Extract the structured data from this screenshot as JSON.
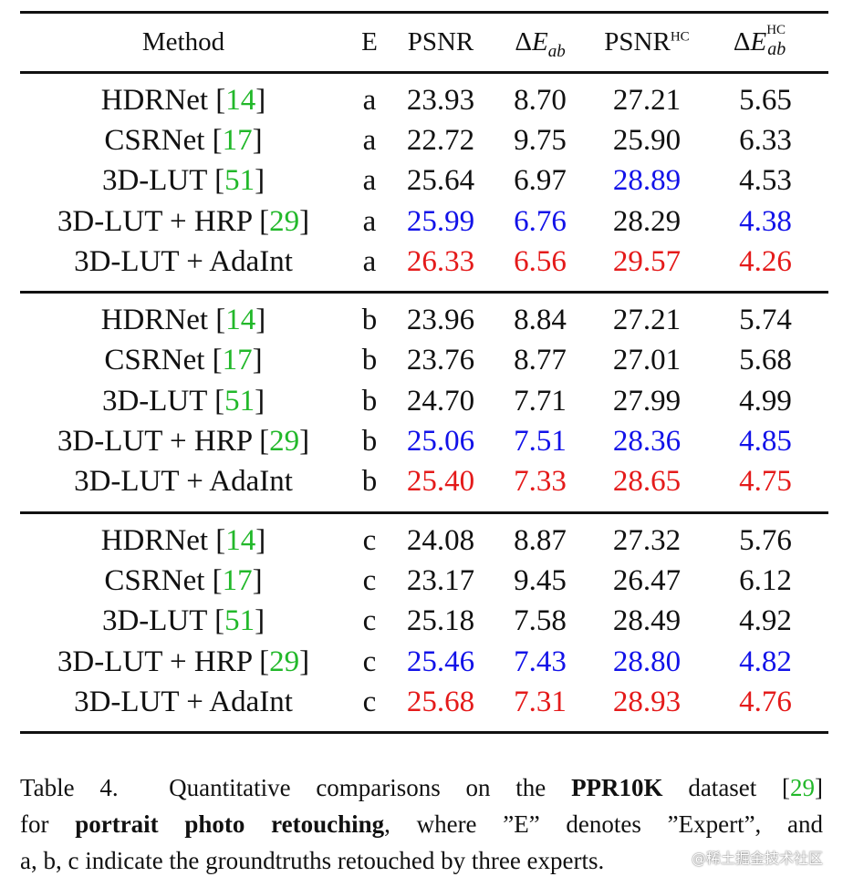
{
  "table": {
    "headers": {
      "method": "Method",
      "expert": "E",
      "psnr": "PSNR",
      "delta_e_symbol": "Δ",
      "delta_e_var": "E",
      "delta_e_sub": "ab",
      "psnr_hc_base": "PSNR",
      "psnr_hc_sup": "HC",
      "delta_e_hc_sup": "HC",
      "delta_e_hc_sub": "ab"
    },
    "groups": [
      {
        "rows": [
          {
            "method": "HDRNet",
            "ref": "14",
            "e": "a",
            "psnr": "23.93",
            "de": "8.70",
            "psnr_hc": "27.21",
            "de_hc": "5.65",
            "psnr_color": "",
            "de_color": "",
            "psnr_hc_color": "",
            "de_hc_color": ""
          },
          {
            "method": "CSRNet",
            "ref": "17",
            "e": "a",
            "psnr": "22.72",
            "de": "9.75",
            "psnr_hc": "25.90",
            "de_hc": "6.33",
            "psnr_color": "",
            "de_color": "",
            "psnr_hc_color": "",
            "de_hc_color": ""
          },
          {
            "method": "3D-LUT",
            "ref": "51",
            "e": "a",
            "psnr": "25.64",
            "de": "6.97",
            "psnr_hc": "28.89",
            "de_hc": "4.53",
            "psnr_color": "",
            "de_color": "",
            "psnr_hc_color": "blue",
            "de_hc_color": ""
          },
          {
            "method": "3D-LUT + HRP",
            "ref": "29",
            "e": "a",
            "psnr": "25.99",
            "de": "6.76",
            "psnr_hc": "28.29",
            "de_hc": "4.38",
            "psnr_color": "blue",
            "de_color": "blue",
            "psnr_hc_color": "",
            "de_hc_color": "blue"
          },
          {
            "method": "3D-LUT + AdaInt",
            "ref": "",
            "e": "a",
            "psnr": "26.33",
            "de": "6.56",
            "psnr_hc": "29.57",
            "de_hc": "4.26",
            "psnr_color": "red",
            "de_color": "red",
            "psnr_hc_color": "red",
            "de_hc_color": "red"
          }
        ]
      },
      {
        "rows": [
          {
            "method": "HDRNet",
            "ref": "14",
            "e": "b",
            "psnr": "23.96",
            "de": "8.84",
            "psnr_hc": "27.21",
            "de_hc": "5.74",
            "psnr_color": "",
            "de_color": "",
            "psnr_hc_color": "",
            "de_hc_color": ""
          },
          {
            "method": "CSRNet",
            "ref": "17",
            "e": "b",
            "psnr": "23.76",
            "de": "8.77",
            "psnr_hc": "27.01",
            "de_hc": "5.68",
            "psnr_color": "",
            "de_color": "",
            "psnr_hc_color": "",
            "de_hc_color": ""
          },
          {
            "method": "3D-LUT",
            "ref": "51",
            "e": "b",
            "psnr": "24.70",
            "de": "7.71",
            "psnr_hc": "27.99",
            "de_hc": "4.99",
            "psnr_color": "",
            "de_color": "",
            "psnr_hc_color": "",
            "de_hc_color": ""
          },
          {
            "method": "3D-LUT + HRP",
            "ref": "29",
            "e": "b",
            "psnr": "25.06",
            "de": "7.51",
            "psnr_hc": "28.36",
            "de_hc": "4.85",
            "psnr_color": "blue",
            "de_color": "blue",
            "psnr_hc_color": "blue",
            "de_hc_color": "blue"
          },
          {
            "method": "3D-LUT + AdaInt",
            "ref": "",
            "e": "b",
            "psnr": "25.40",
            "de": "7.33",
            "psnr_hc": "28.65",
            "de_hc": "4.75",
            "psnr_color": "red",
            "de_color": "red",
            "psnr_hc_color": "red",
            "de_hc_color": "red"
          }
        ]
      },
      {
        "rows": [
          {
            "method": "HDRNet",
            "ref": "14",
            "e": "c",
            "psnr": "24.08",
            "de": "8.87",
            "psnr_hc": "27.32",
            "de_hc": "5.76",
            "psnr_color": "",
            "de_color": "",
            "psnr_hc_color": "",
            "de_hc_color": ""
          },
          {
            "method": "CSRNet",
            "ref": "17",
            "e": "c",
            "psnr": "23.17",
            "de": "9.45",
            "psnr_hc": "26.47",
            "de_hc": "6.12",
            "psnr_color": "",
            "de_color": "",
            "psnr_hc_color": "",
            "de_hc_color": ""
          },
          {
            "method": "3D-LUT",
            "ref": "51",
            "e": "c",
            "psnr": "25.18",
            "de": "7.58",
            "psnr_hc": "28.49",
            "de_hc": "4.92",
            "psnr_color": "",
            "de_color": "",
            "psnr_hc_color": "",
            "de_hc_color": ""
          },
          {
            "method": "3D-LUT + HRP",
            "ref": "29",
            "e": "c",
            "psnr": "25.46",
            "de": "7.43",
            "psnr_hc": "28.80",
            "de_hc": "4.82",
            "psnr_color": "blue",
            "de_color": "blue",
            "psnr_hc_color": "blue",
            "de_hc_color": "blue"
          },
          {
            "method": "3D-LUT + AdaInt",
            "ref": "",
            "e": "c",
            "psnr": "25.68",
            "de": "7.31",
            "psnr_hc": "28.93",
            "de_hc": "4.76",
            "psnr_color": "red",
            "de_color": "red",
            "psnr_hc_color": "red",
            "de_hc_color": "red"
          }
        ]
      }
    ]
  },
  "caption": {
    "label": "Table 4.",
    "t1": "Quantitative comparisons on the",
    "dataset": "PPR10K",
    "t2": "dataset",
    "ref": "29",
    "t3": "for",
    "task": "portrait photo retouching",
    "t4": ", where ”E” denotes ”Expert”, and",
    "t5": "a, b, c indicate the groundtruths retouched by three experts."
  },
  "watermark": "@稀土掘金技术社区",
  "colors": {
    "ref_green": "#22b82a",
    "best_red": "#e41a1a",
    "second_blue": "#1212e8",
    "text": "#111111"
  }
}
